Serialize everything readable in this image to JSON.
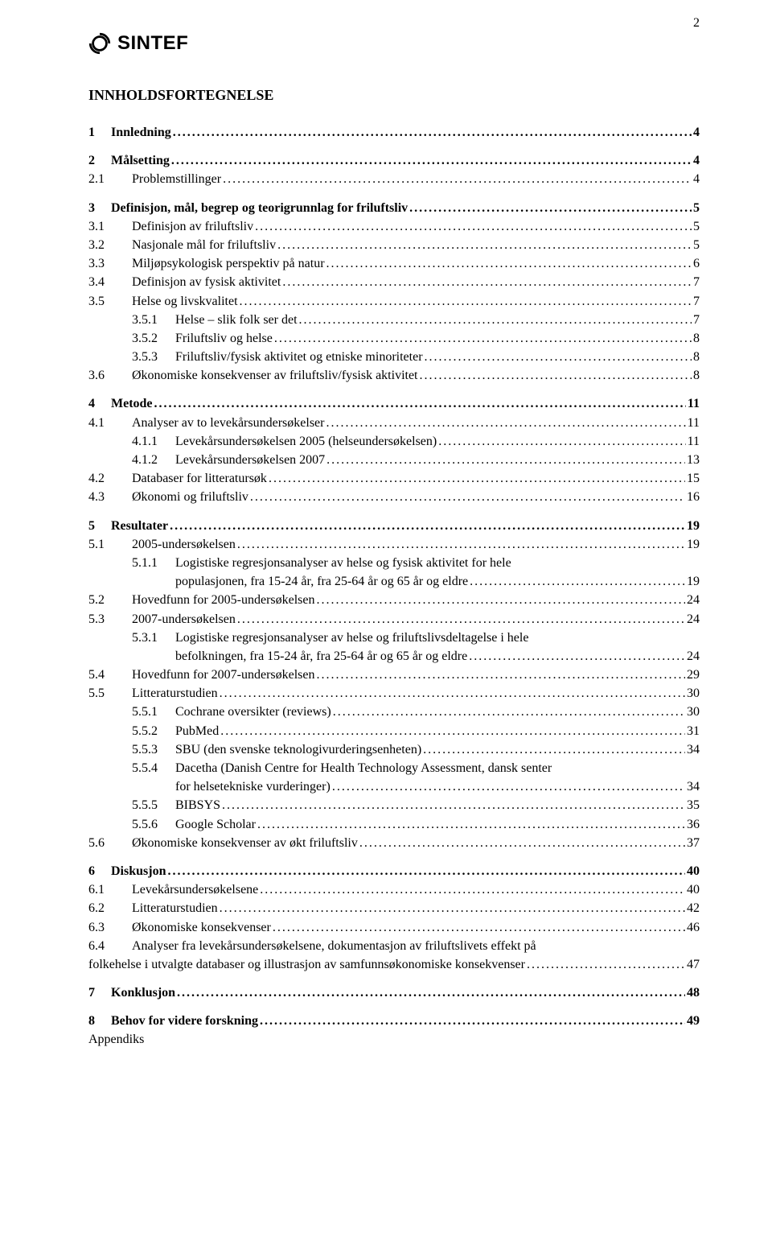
{
  "page_number": "2",
  "logo_text": "SINTEF",
  "toc_title": "INNHOLDSFORTEGNELSE",
  "dot_fill": "................................................................................................................................................................................................................",
  "entries": [
    {
      "level": 0,
      "num": "1",
      "label": "Innledning",
      "page": "4"
    },
    {
      "level": 0,
      "num": "2",
      "label": "Målsetting",
      "page": "4"
    },
    {
      "level": 1,
      "num": "2.1",
      "label": "Problemstillinger",
      "page": "4"
    },
    {
      "level": 0,
      "num": "3",
      "label": "Definisjon, mål, begrep og teorigrunnlag for friluftsliv",
      "page": "5"
    },
    {
      "level": 1,
      "num": "3.1",
      "label": "Definisjon av friluftsliv",
      "page": "5"
    },
    {
      "level": 1,
      "num": "3.2",
      "label": "Nasjonale mål for friluftsliv",
      "page": "5"
    },
    {
      "level": 1,
      "num": "3.3",
      "label": "Miljøpsykologisk perspektiv på natur",
      "page": "6"
    },
    {
      "level": 1,
      "num": "3.4",
      "label": "Definisjon av fysisk aktivitet",
      "page": "7"
    },
    {
      "level": 1,
      "num": "3.5",
      "label": "Helse og livskvalitet",
      "page": "7"
    },
    {
      "level": 2,
      "num": "3.5.1",
      "label": "Helse – slik folk ser det",
      "page": "7"
    },
    {
      "level": 2,
      "num": "3.5.2",
      "label": "Friluftsliv og helse",
      "page": "8"
    },
    {
      "level": 2,
      "num": "3.5.3",
      "label": "Friluftsliv/fysisk aktivitet og etniske minoriteter",
      "page": "8"
    },
    {
      "level": 1,
      "num": "3.6",
      "label": "Økonomiske konsekvenser av friluftsliv/fysisk aktivitet",
      "page": "8"
    },
    {
      "level": 0,
      "num": "4",
      "label": "Metode",
      "page": "11"
    },
    {
      "level": 1,
      "num": "4.1",
      "label": "Analyser av to levekårsundersøkelser",
      "page": "11"
    },
    {
      "level": 2,
      "num": "4.1.1",
      "label": "Levekårsundersøkelsen 2005 (helseundersøkelsen)",
      "page": "11"
    },
    {
      "level": 2,
      "num": "4.1.2",
      "label": "Levekårsundersøkelsen 2007",
      "page": "13"
    },
    {
      "level": 1,
      "num": "4.2",
      "label": "Databaser for litteratursøk",
      "page": "15"
    },
    {
      "level": 1,
      "num": "4.3",
      "label": "Økonomi og friluftsliv",
      "page": "16"
    },
    {
      "level": 0,
      "num": "5",
      "label": "Resultater",
      "page": "19"
    },
    {
      "level": 1,
      "num": "5.1",
      "label": "2005-undersøkelsen",
      "page": "19"
    },
    {
      "level": 2,
      "num": "5.1.1",
      "label": "Logistiske regresjonsanalyser av helse og fysisk aktivitet for hele",
      "label2": "populasjonen, fra 15-24 år, fra 25-64 år og 65 år og eldre",
      "page": "19",
      "multiline": true
    },
    {
      "level": 1,
      "num": "5.2",
      "label": "Hovedfunn for 2005-undersøkelsen",
      "page": "24"
    },
    {
      "level": 1,
      "num": "5.3",
      "label": "2007-undersøkelsen",
      "page": "24"
    },
    {
      "level": 2,
      "num": "5.3.1",
      "label": "Logistiske regresjonsanalyser av helse og friluftslivsdeltagelse i hele",
      "label2": "befolkningen, fra 15-24 år, fra 25-64 år og 65 år og eldre",
      "page": "24",
      "multiline": true
    },
    {
      "level": 1,
      "num": "5.4",
      "label": "Hovedfunn for 2007-undersøkelsen",
      "page": "29"
    },
    {
      "level": 1,
      "num": "5.5",
      "label": "Litteraturstudien",
      "page": "30"
    },
    {
      "level": 2,
      "num": "5.5.1",
      "label": "Cochrane oversikter (reviews)",
      "page": "30"
    },
    {
      "level": 2,
      "num": "5.5.2",
      "label": "PubMed",
      "page": "31"
    },
    {
      "level": 2,
      "num": "5.5.3",
      "label": "SBU (den svenske teknologivurderingsenheten)",
      "page": "34"
    },
    {
      "level": 2,
      "num": "5.5.4",
      "label": "Dacetha (Danish Centre for Health Technology Assessment, dansk senter",
      "label2": "for helsetekniske vurderinger)",
      "page": "34",
      "multiline": true
    },
    {
      "level": 2,
      "num": "5.5.5",
      "label": "BIBSYS",
      "page": "35"
    },
    {
      "level": 2,
      "num": "5.5.6",
      "label": "Google Scholar",
      "page": "36"
    },
    {
      "level": 1,
      "num": "5.6",
      "label": "Økonomiske konsekvenser av økt friluftsliv",
      "page": "37"
    },
    {
      "level": 0,
      "num": "6",
      "label": "Diskusjon",
      "page": "40"
    },
    {
      "level": 1,
      "num": "6.1",
      "label": "Levekårsundersøkelsene",
      "page": "40"
    },
    {
      "level": 1,
      "num": "6.2",
      "label": "Litteraturstudien",
      "page": "42"
    },
    {
      "level": 1,
      "num": "6.3",
      "label": "Økonomiske konsekvenser",
      "page": "46"
    },
    {
      "level": 1,
      "num": "6.4",
      "label": "Analyser fra levekårsundersøkelsene, dokumentasjon av friluftslivets effekt på",
      "label2": "folkehelse i utvalgte databaser og illustrasjon av samfunnsøkonomiske konsekvenser",
      "page": "47",
      "multiline": true,
      "tail_indent": 0
    },
    {
      "level": 0,
      "num": "7",
      "label": "Konklusjon",
      "page": "48"
    },
    {
      "level": 0,
      "num": "8",
      "label": "Behov for videre forskning",
      "page": "49"
    }
  ],
  "appendix_label": "Appendiks"
}
